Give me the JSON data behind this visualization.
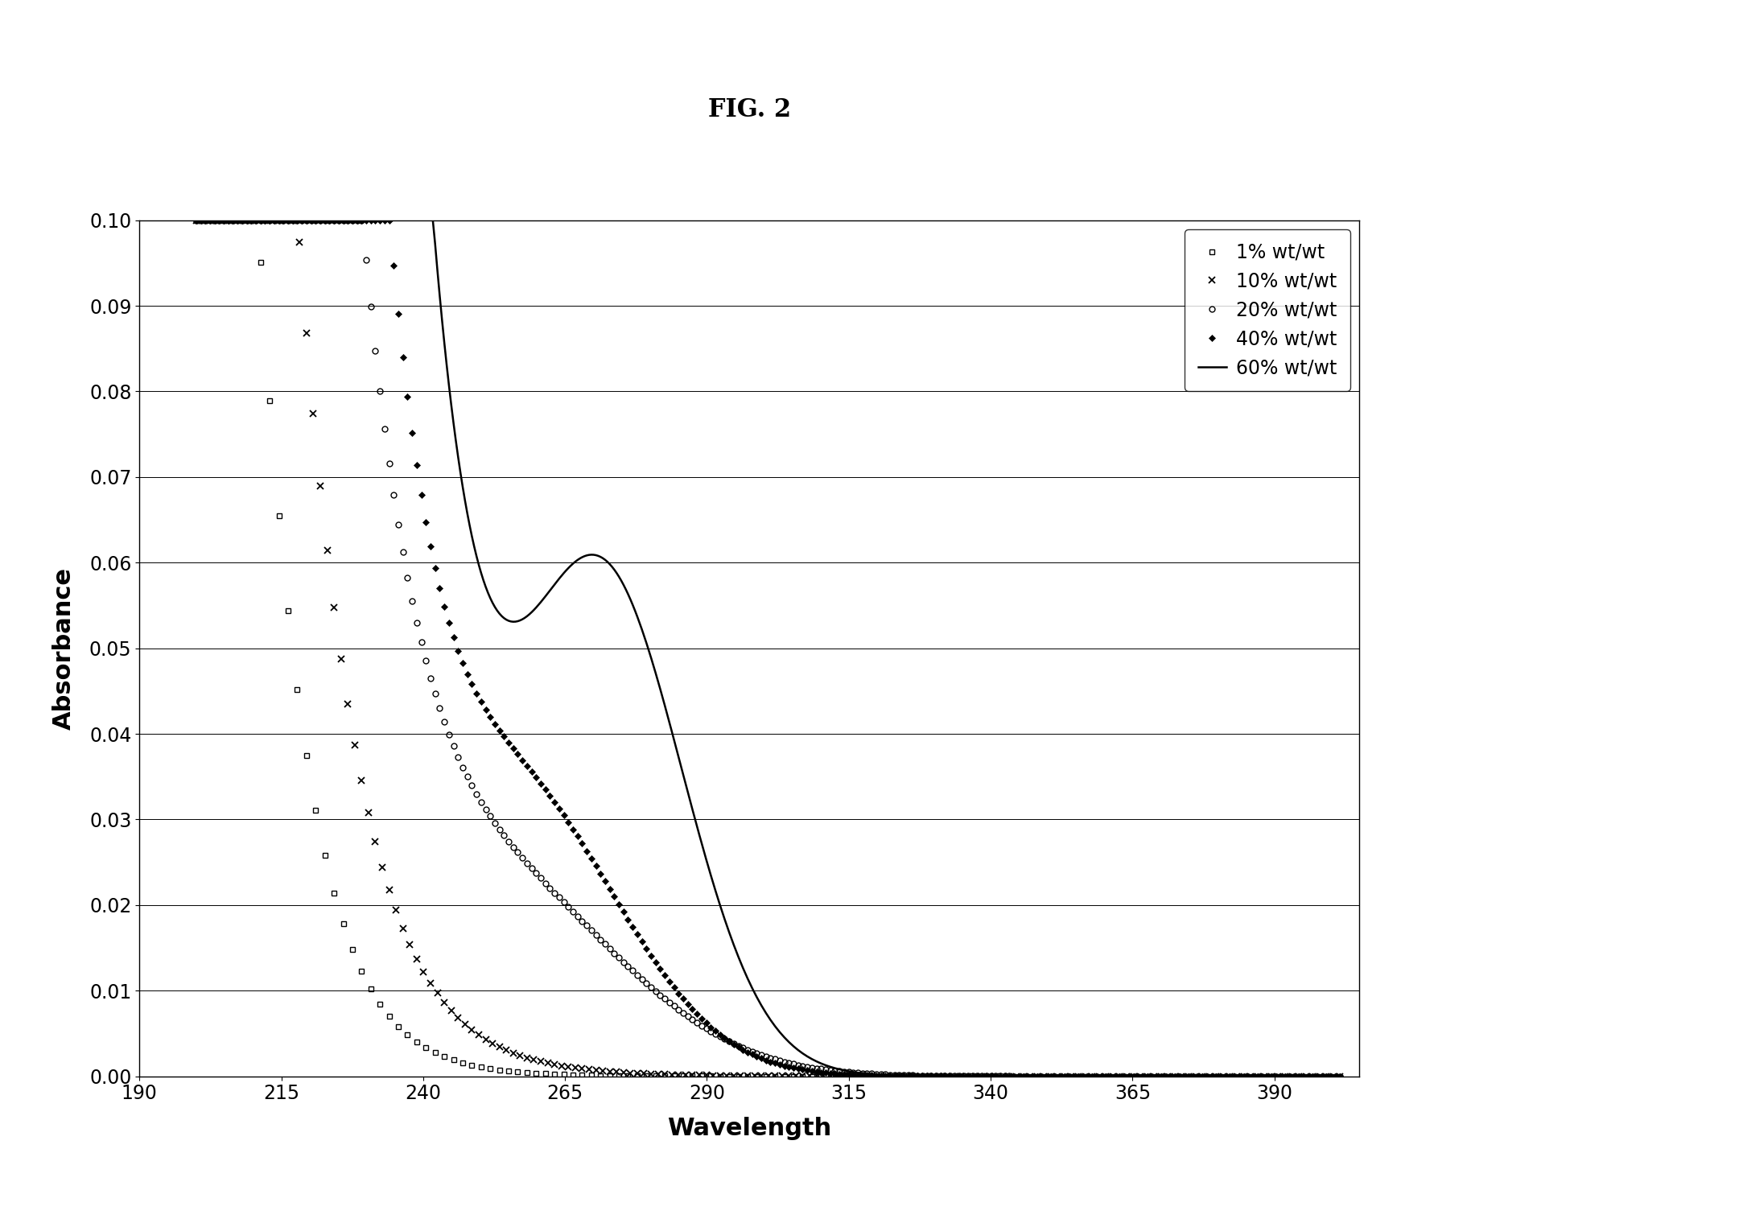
{
  "title": "FIG. 2",
  "xlabel": "Wavelength",
  "ylabel": "Absorbance",
  "xlim": [
    190,
    405
  ],
  "ylim": [
    0,
    0.1
  ],
  "xticks": [
    190,
    215,
    240,
    265,
    290,
    315,
    340,
    365,
    390
  ],
  "yticks": [
    0,
    0.01,
    0.02,
    0.03,
    0.04,
    0.05,
    0.06,
    0.07,
    0.08,
    0.09,
    0.1
  ],
  "legend_labels": [
    "1% wt/wt",
    "10% wt/wt",
    "20% wt/wt",
    "40% wt/wt",
    "60% wt/wt"
  ],
  "bg_color": "#ffffff",
  "line_color": "#000000",
  "figsize": [
    21.66,
    15.2
  ],
  "dpi": 100
}
